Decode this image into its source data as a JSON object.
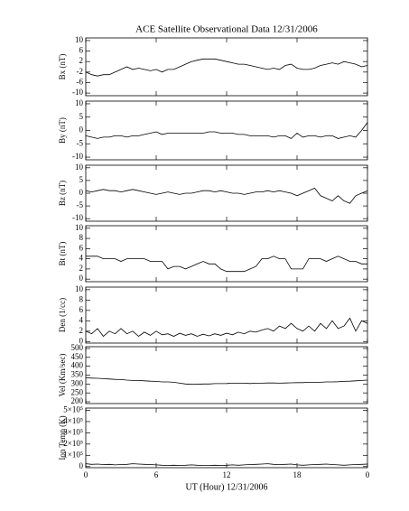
{
  "chart_data": {
    "type": "line",
    "title": "ACE Satellite Observational Data   12/31/2006",
    "xlabel": "UT (Hour)  12/31/2006",
    "color": "#000000",
    "x": [
      0,
      0.5,
      1,
      1.5,
      2,
      2.5,
      3,
      3.5,
      4,
      4.5,
      5,
      5.5,
      6,
      6.5,
      7,
      7.5,
      8,
      8.5,
      9,
      9.5,
      10,
      10.5,
      11,
      11.5,
      12,
      12.5,
      13,
      13.5,
      14,
      14.5,
      15,
      15.5,
      16,
      16.5,
      17,
      17.5,
      18,
      18.5,
      19,
      19.5,
      20,
      20.5,
      21,
      21.5,
      22,
      22.5,
      23,
      23.5,
      24
    ],
    "xlim": [
      0,
      24
    ],
    "xticks": [
      0,
      6,
      12,
      18,
      {
        "value": 24,
        "label": "0"
      }
    ],
    "panels": [
      {
        "ylabel": "Bx (nT)",
        "ylim": [
          -11,
          11
        ],
        "yticks": [
          -10,
          -6,
          -2,
          2,
          6,
          10
        ],
        "values": [
          -2,
          -3,
          -3.5,
          -3,
          -3,
          -2,
          -1,
          0,
          -1,
          -0.5,
          -1,
          -1.5,
          -1,
          -2,
          -1,
          -1,
          0,
          1,
          2,
          2.5,
          3,
          3,
          3,
          2.5,
          2,
          1.5,
          1,
          1,
          0.5,
          0,
          -0.5,
          -1,
          -0.5,
          -1,
          0.5,
          1,
          -0.5,
          -1,
          -1,
          -0.5,
          0.5,
          1,
          1.5,
          1,
          2,
          1.5,
          1,
          0,
          0.5
        ]
      },
      {
        "ylabel": "By (nT)",
        "ylim": [
          -11,
          11
        ],
        "yticks": [
          -10,
          -5,
          0,
          5,
          10
        ],
        "values": [
          -2,
          -2.5,
          -3,
          -2.5,
          -2.5,
          -2,
          -2,
          -2.5,
          -2,
          -2,
          -1.5,
          -1,
          -0.5,
          -1.5,
          -1,
          -1,
          -1,
          -1,
          -1,
          -1,
          -1,
          -0.5,
          -0.5,
          -1,
          -1,
          -1,
          -1.5,
          -1.5,
          -2,
          -2,
          -2,
          -2,
          -2.5,
          -2,
          -2,
          -3,
          -1,
          -2.5,
          -2,
          -2,
          -2.5,
          -2,
          -2,
          -3,
          -2.5,
          -2,
          -2.5,
          0,
          3
        ]
      },
      {
        "ylabel": "Bz (nT)",
        "ylim": [
          -11,
          11
        ],
        "yticks": [
          -10,
          -5,
          0,
          5,
          10
        ],
        "values": [
          1,
          0.5,
          1,
          1.5,
          1,
          1,
          0.5,
          1,
          1.5,
          1,
          0.5,
          0,
          -0.5,
          0,
          0.5,
          0,
          -0.5,
          0,
          0,
          0.5,
          1,
          1,
          0.5,
          1,
          0.5,
          0,
          0,
          -0.5,
          0,
          0.5,
          0.5,
          1,
          0.5,
          1,
          0.5,
          0,
          -1,
          0,
          1,
          2,
          -1,
          -2,
          -3,
          -1,
          -3,
          -4,
          -1,
          0,
          1
        ]
      },
      {
        "ylabel": "Bt (nT)",
        "ylim": [
          -0.5,
          10.5
        ],
        "yticks": [
          0,
          2,
          4,
          6,
          8,
          10
        ],
        "values": [
          4.5,
          4.5,
          4.5,
          4,
          4,
          4,
          3.5,
          4,
          4,
          4,
          4,
          3.5,
          3.5,
          3.5,
          2,
          2.5,
          2.5,
          2,
          2.5,
          3,
          3.5,
          3,
          3,
          2,
          1.5,
          1.5,
          1.5,
          1.5,
          2,
          2.5,
          4,
          4,
          4.5,
          4,
          4,
          2,
          2,
          2,
          4,
          4,
          4,
          3.5,
          4,
          4.5,
          4,
          3.5,
          3.5,
          3,
          3
        ]
      },
      {
        "ylabel": "Den (1/cc)",
        "ylim": [
          -0.3,
          10.5
        ],
        "yticks": [
          0,
          2,
          4,
          6,
          8,
          10
        ],
        "values": [
          2,
          1.5,
          2.5,
          1,
          2,
          1.5,
          2.5,
          1.5,
          2,
          1,
          1.8,
          1.2,
          2,
          1.3,
          1.5,
          1,
          1.6,
          1.2,
          1.5,
          1,
          1.4,
          1.1,
          1.5,
          1.2,
          1.6,
          1.3,
          1.8,
          1.5,
          2,
          1.8,
          2.2,
          2.5,
          2,
          3,
          2.5,
          3.5,
          2.5,
          2,
          3,
          2,
          3.5,
          2.5,
          4,
          2.5,
          3,
          4.5,
          2,
          4,
          3.5
        ]
      },
      {
        "ylabel": "Vel (Km/sec)",
        "ylim": [
          190,
          510
        ],
        "yticks": [
          200,
          250,
          300,
          350,
          400,
          450,
          500
        ],
        "values": [
          335,
          333,
          332,
          330,
          328,
          326,
          325,
          322,
          320,
          320,
          318,
          316,
          315,
          312,
          312,
          310,
          305,
          300,
          298,
          298,
          300,
          300,
          302,
          302,
          303,
          305,
          305,
          305,
          303,
          305,
          305,
          306,
          306,
          305,
          306,
          307,
          308,
          308,
          310,
          310,
          310,
          312,
          312,
          313,
          315,
          316,
          318,
          320,
          322
        ]
      },
      {
        "ylabel": "Ion Temp (K)",
        "ylim": [
          -10000,
          520000
        ],
        "yticks": [
          0,
          {
            "value": 100000,
            "label": "1×10⁵"
          },
          {
            "value": 200000,
            "label": "2×10⁵"
          },
          {
            "value": 300000,
            "label": "3×10⁵"
          },
          {
            "value": 400000,
            "label": "4×10⁵"
          },
          {
            "value": 500000,
            "label": "5×10⁵"
          }
        ],
        "values": [
          25000,
          20000,
          22000,
          18000,
          20000,
          15000,
          18000,
          20000,
          25000,
          22000,
          20000,
          18000,
          15000,
          12000,
          10000,
          12000,
          10000,
          12000,
          15000,
          12000,
          10000,
          10000,
          12000,
          10000,
          12000,
          15000,
          12000,
          15000,
          18000,
          20000,
          22000,
          25000,
          20000,
          18000,
          20000,
          22000,
          15000,
          12000,
          15000,
          18000,
          20000,
          22000,
          18000,
          15000,
          12000,
          15000,
          18000,
          20000,
          22000
        ]
      }
    ]
  }
}
